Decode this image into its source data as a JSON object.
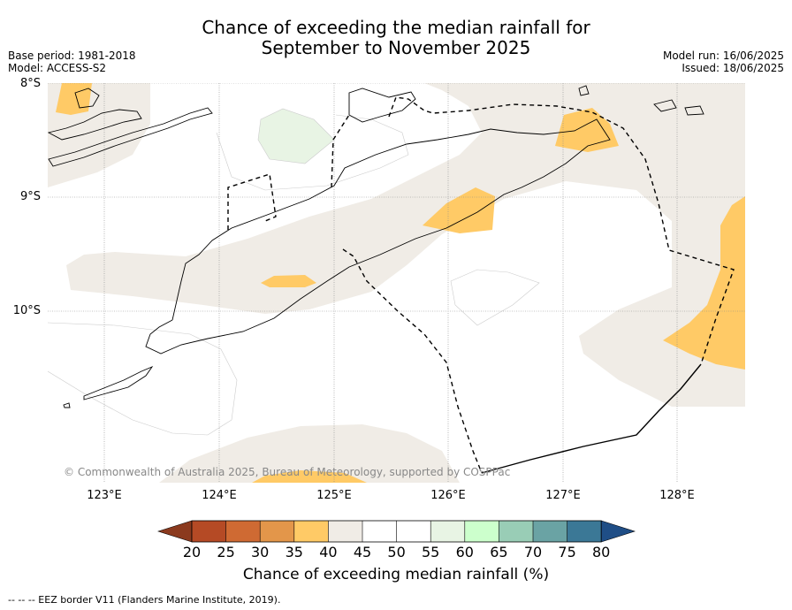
{
  "title": {
    "line1": "Chance of exceeding the median rainfall for",
    "line2": "September to November 2025"
  },
  "meta": {
    "base_period": "Base period: 1981-2018",
    "model": "Model: ACCESS-S2",
    "model_run": "Model run: 16/06/2025",
    "issued": "Issued: 18/06/2025"
  },
  "axes": {
    "lat_labels": [
      "8°S",
      "9°S",
      "10°S"
    ],
    "lon_labels": [
      "123°E",
      "124°E",
      "125°E",
      "126°E",
      "127°E",
      "128°E"
    ]
  },
  "copyright": "© Commonwealth of Australia 2025, Bureau of Meteorology, supported by COSPPac",
  "colorbar": {
    "title": "Chance of exceeding median rainfall (%)",
    "ticks": [
      "20",
      "25",
      "30",
      "35",
      "40",
      "45",
      "50",
      "55",
      "60",
      "65",
      "70",
      "75",
      "80"
    ],
    "colors": [
      "#8b3a1e",
      "#b54a25",
      "#cf6a33",
      "#e3964a",
      "#ffca66",
      "#f0ece6",
      "#ffffff",
      "#ffffff",
      "#e8f4e4",
      "#ccffcc",
      "#99cdb6",
      "#6aa3a4",
      "#3b7896",
      "#1f4e86"
    ]
  },
  "footnote": "--  --  -- EEZ border V11 (Flanders Marine Institute, 2019)."
}
